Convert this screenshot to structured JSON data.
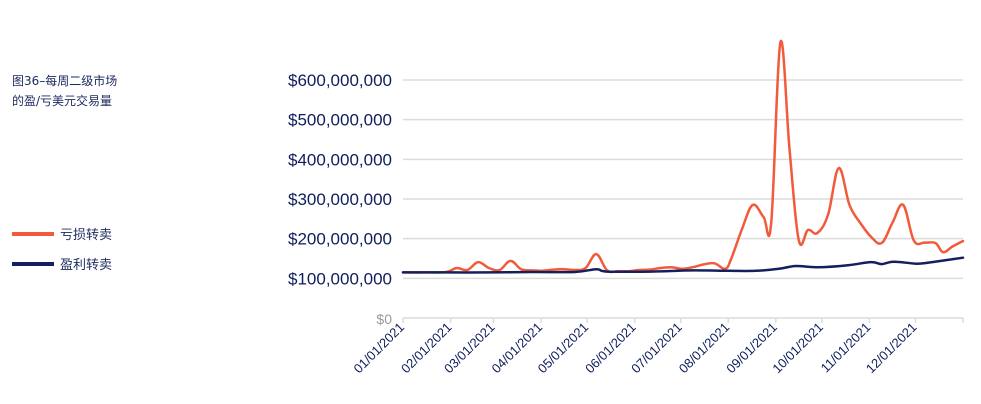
{
  "chart_data": {
    "type": "line",
    "title": "图36–每周二级市场的盈/亏美元交易量",
    "title_lines": [
      "图36–每周二级市场",
      "的盈/亏美元交易量"
    ],
    "xlabel": "",
    "ylabel": "",
    "ylim": [
      0,
      600000000
    ],
    "yticks": [
      0,
      100000000,
      200000000,
      300000000,
      400000000,
      500000000,
      600000000
    ],
    "ytick_labels": [
      "$0",
      "$100,000,000",
      "$200,000,000",
      "$300,000,000",
      "$400,000,000",
      "$500,000,000",
      "$600,000,000"
    ],
    "xlim_days": [
      0,
      365
    ],
    "xtick_labels": [
      "01/01/2021",
      "02/01/2021",
      "03/01/2021",
      "04/01/2021",
      "05/01/2021",
      "06/01/2021",
      "07/01/2021",
      "08/01/2021",
      "09/01/2021",
      "10/01/2021",
      "11/01/2021",
      "12/01/2021"
    ],
    "xtick_days": [
      0,
      31,
      59,
      90,
      120,
      151,
      181,
      212,
      243,
      273,
      304,
      334,
      365
    ],
    "grid": true,
    "legend_position": "left",
    "series": [
      {
        "name": "亏损转卖",
        "color": "#f15a3a",
        "x_days": [
          0,
          14,
          28,
          35,
          42,
          49,
          56,
          63,
          70,
          77,
          84,
          91,
          98,
          105,
          112,
          119,
          126,
          133,
          140,
          147,
          154,
          161,
          168,
          175,
          182,
          189,
          196,
          203,
          210,
          214,
          221,
          228,
          235,
          240,
          246,
          252,
          258,
          264,
          270,
          277,
          284,
          291,
          298,
          305,
          312,
          319,
          326,
          333,
          340,
          347,
          352,
          358,
          365
        ],
        "values": [
          115000000,
          115000000,
          116000000,
          126000000,
          121000000,
          141000000,
          126000000,
          121000000,
          144000000,
          123000000,
          120000000,
          119000000,
          122000000,
          123000000,
          121000000,
          126000000,
          161000000,
          120000000,
          118000000,
          118000000,
          121000000,
          122000000,
          126000000,
          128000000,
          124000000,
          128000000,
          135000000,
          138000000,
          124000000,
          150000000,
          225000000,
          285000000,
          255000000,
          240000000,
          695000000,
          423000000,
          196000000,
          222000000,
          214000000,
          260000000,
          378000000,
          285000000,
          240000000,
          205000000,
          189000000,
          240000000,
          285000000,
          195000000,
          190000000,
          189000000,
          166000000,
          180000000,
          194000000
        ]
      },
      {
        "name": "盈利转卖",
        "color": "#14205e",
        "x_days": [
          0,
          28,
          56,
          84,
          112,
          126,
          133,
          161,
          189,
          212,
          230,
          245,
          256,
          270,
          290,
          305,
          312,
          320,
          335,
          345,
          365
        ],
        "values": [
          115000000,
          115000000,
          115000000,
          116000000,
          116000000,
          123000000,
          117000000,
          117000000,
          120000000,
          119000000,
          119000000,
          124000000,
          131000000,
          128000000,
          133000000,
          141000000,
          136000000,
          142000000,
          137000000,
          141000000,
          152000000
        ]
      }
    ]
  }
}
